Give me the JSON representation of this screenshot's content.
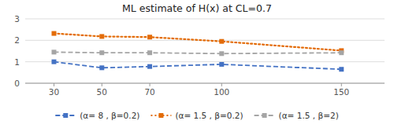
{
  "chart_data": {
    "type": "line",
    "title": "ML estimate of H(x) at CL=0.7",
    "x": [
      30,
      50,
      70,
      100,
      150
    ],
    "series": [
      {
        "name": "(α= 8 , β=0.2)",
        "color": "#4472C4",
        "values": [
          1.0,
          0.72,
          0.78,
          0.88,
          0.65
        ],
        "line_style": "dashed",
        "marker": "square"
      },
      {
        "name": "(α= 1.5 , β=0.2)",
        "color": "#E36C09",
        "values": [
          2.32,
          2.18,
          2.15,
          1.95,
          1.52
        ],
        "line_style": "dotted",
        "marker": "square"
      },
      {
        "name": "(α= 1.5 , β=2)",
        "color": "#A5A5A5",
        "values": [
          1.45,
          1.42,
          1.42,
          1.38,
          1.42
        ],
        "line_style": "dashed",
        "marker": "square"
      }
    ],
    "xlim": [
      18,
      168
    ],
    "xticks": [
      30,
      50,
      70,
      100,
      150
    ],
    "ylim": [
      0,
      3
    ],
    "yticks": [
      0,
      1,
      2,
      3
    ],
    "grid": true,
    "legend": "bottom"
  }
}
